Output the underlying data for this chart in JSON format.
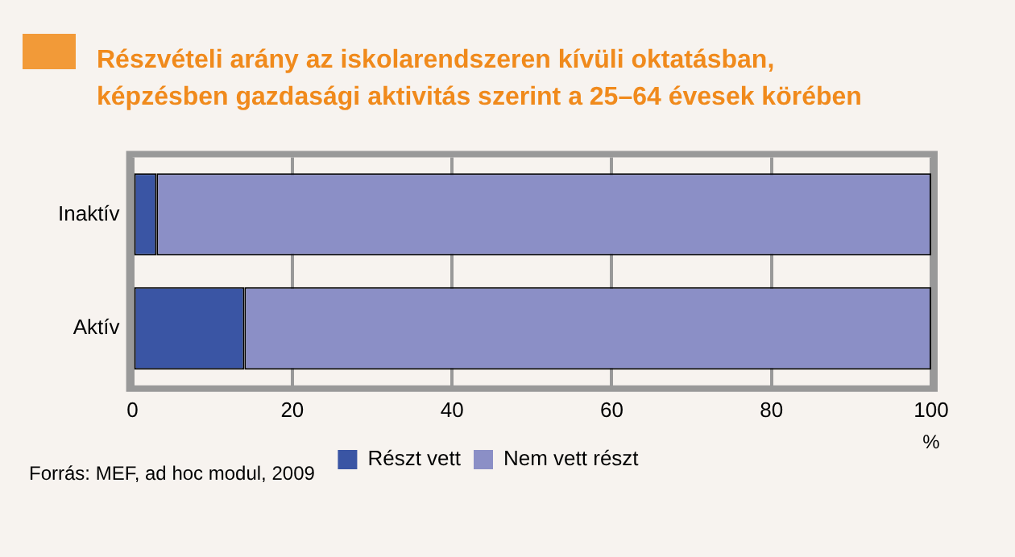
{
  "chart_data": {
    "type": "bar",
    "orientation": "horizontal",
    "stacked": true,
    "title": "Részvételi arány az iskolarendszeren kívüli oktatásban,\nképzésben gazdasági aktivitás szerint a 25–64 évesek körében",
    "xlabel": "%",
    "categories": [
      "Inaktív",
      "Aktív"
    ],
    "series": [
      {
        "name": "Részt vett",
        "color": "#3a55a4",
        "values": [
          3,
          14
        ]
      },
      {
        "name": "Nem vett részt",
        "color": "#8b8fc6",
        "values": [
          97,
          86
        ]
      }
    ],
    "xlim": [
      0,
      100
    ],
    "xticks": [
      0,
      20,
      40,
      60,
      80,
      100
    ],
    "grid": "x",
    "legend": "bottom",
    "annotations": [
      "Forrás: MEF, ad hoc modul, 2009"
    ]
  }
}
